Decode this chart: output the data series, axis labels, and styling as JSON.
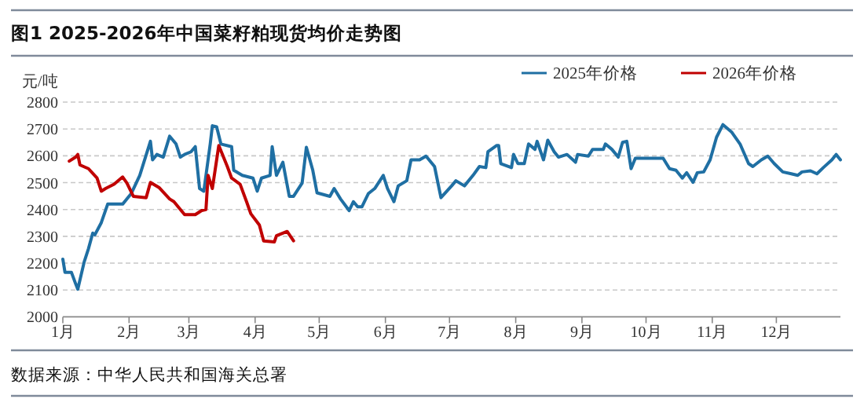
{
  "chart_data": {
    "type": "line",
    "title": "图1 2025-2026年中国菜籽粕现货均价走势图",
    "ylabel": "元/吨",
    "annotations": [
      "数据来源：中华人民共和国海关总署"
    ],
    "xlim": [
      "--01-01",
      "--12-31"
    ],
    "xticks": [
      {
        "value": "--01-01",
        "label": "1月"
      },
      {
        "value": "--02-01",
        "label": "2月"
      },
      {
        "value": "--03-01",
        "label": "3月"
      },
      {
        "value": "--04-01",
        "label": "4月"
      },
      {
        "value": "--05-01",
        "label": "5月"
      },
      {
        "value": "--06-01",
        "label": "6月"
      },
      {
        "value": "--07-01",
        "label": "7月"
      },
      {
        "value": "--08-01",
        "label": "8月"
      },
      {
        "value": "--09-01",
        "label": "9月"
      },
      {
        "value": "--10-01",
        "label": "10月"
      },
      {
        "value": "--11-01",
        "label": "11月"
      },
      {
        "value": "--12-01",
        "label": "12月"
      }
    ],
    "ylim": [
      2000,
      2800
    ],
    "yticks": [
      2000,
      2100,
      2200,
      2300,
      2400,
      2500,
      2600,
      2700,
      2800
    ],
    "grid": "y",
    "legend": "top right",
    "marker": "none",
    "line_style": "solid",
    "series": [
      {
        "name": "2025年价格",
        "color": "#1f6fa3",
        "x": [
          "--01-01",
          "--01-02",
          "--01-05",
          "--01-07",
          "--01-08",
          "--01-11",
          "--01-13",
          "--01-15",
          "--01-16",
          "--01-19",
          "--01-22",
          "--01-26",
          "--01-29",
          "--02-02",
          "--02-06",
          "--02-11",
          "--02-12",
          "--02-14",
          "--02-17",
          "--02-20",
          "--02-23",
          "--02-25",
          "--02-27",
          "--03-02",
          "--03-04",
          "--03-06",
          "--03-08",
          "--03-11",
          "--03-12",
          "--03-14",
          "--03-16",
          "--03-21",
          "--03-22",
          "--03-26",
          "--03-31",
          "--04-02",
          "--04-04",
          "--04-08",
          "--04-09",
          "--04-11",
          "--04-14",
          "--04-17",
          "--04-19",
          "--04-23",
          "--04-25",
          "--04-28",
          "--04-30",
          "--05-06",
          "--05-08",
          "--05-11",
          "--05-15",
          "--05-17",
          "--05-19",
          "--05-21",
          "--05-24",
          "--05-27",
          "--05-31",
          "--06-02",
          "--06-05",
          "--06-07",
          "--06-11",
          "--06-13",
          "--06-17",
          "--06-20",
          "--06-24",
          "--06-27",
          "--07-02",
          "--07-04",
          "--07-08",
          "--07-12",
          "--07-15",
          "--07-18",
          "--07-19",
          "--07-23",
          "--07-24",
          "--07-25",
          "--07-30",
          "--07-31",
          "--08-02",
          "--08-05",
          "--08-07",
          "--08-10",
          "--08-11",
          "--08-14",
          "--08-16",
          "--08-19",
          "--08-21",
          "--08-25",
          "--08-29",
          "--08-30",
          "--09-04",
          "--09-06",
          "--09-11",
          "--09-12",
          "--09-15",
          "--09-18",
          "--09-20",
          "--09-22",
          "--09-24",
          "--09-26",
          "--09-30",
          "--10-09",
          "--10-12",
          "--10-15",
          "--10-18",
          "--10-20",
          "--10-23",
          "--10-25",
          "--10-28",
          "--10-31",
          "--11-03",
          "--11-06",
          "--11-10",
          "--11-14",
          "--11-18",
          "--11-20",
          "--11-24",
          "--11-27",
          "--11-30",
          "--12-04",
          "--12-08",
          "--12-11",
          "--12-13",
          "--12-17",
          "--12-20",
          "--12-23",
          "--12-27",
          "--12-29",
          "--12-31"
        ],
        "values": [
          2215,
          2166,
          2166,
          2123,
          2103,
          2205,
          2254,
          2312,
          2306,
          2351,
          2420,
          2420,
          2420,
          2459,
          2527,
          2654,
          2585,
          2605,
          2595,
          2673,
          2644,
          2595,
          2605,
          2615,
          2634,
          2478,
          2468,
          2644,
          2712,
          2708,
          2644,
          2634,
          2546,
          2527,
          2517,
          2468,
          2517,
          2527,
          2634,
          2527,
          2576,
          2449,
          2449,
          2498,
          2632,
          2546,
          2462,
          2449,
          2478,
          2439,
          2396,
          2429,
          2410,
          2410,
          2459,
          2478,
          2527,
          2478,
          2429,
          2488,
          2507,
          2585,
          2585,
          2599,
          2560,
          2444,
          2488,
          2507,
          2488,
          2527,
          2560,
          2556,
          2615,
          2638,
          2638,
          2571,
          2556,
          2605,
          2571,
          2571,
          2644,
          2624,
          2654,
          2585,
          2658,
          2615,
          2595,
          2605,
          2576,
          2605,
          2599,
          2624,
          2624,
          2644,
          2624,
          2595,
          2650,
          2654,
          2552,
          2591,
          2591,
          2591,
          2552,
          2546,
          2517,
          2537,
          2501,
          2537,
          2540,
          2585,
          2669,
          2716,
          2689,
          2644,
          2571,
          2560,
          2585,
          2599,
          2571,
          2540,
          2533,
          2527,
          2540,
          2544,
          2533,
          2556,
          2585,
          2605,
          2585
        ]
      },
      {
        "name": "2026年价格",
        "color": "#c00000",
        "x": [
          "--01-04",
          "--01-07",
          "--01-08",
          "--01-09",
          "--01-13",
          "--01-17",
          "--01-19",
          "--01-21",
          "--01-25",
          "--01-29",
          "--01-31",
          "--02-03",
          "--02-09",
          "--02-11",
          "--02-15",
          "--02-20",
          "--02-22",
          "--02-27",
          "--03-04",
          "--03-07",
          "--03-09",
          "--03-10",
          "--03-12",
          "--03-15",
          "--03-19",
          "--03-21",
          "--03-25",
          "--03-28",
          "--03-30",
          "--04-03",
          "--04-05",
          "--04-10",
          "--04-11",
          "--04-16",
          "--04-19"
        ],
        "values": [
          2580,
          2595,
          2605,
          2566,
          2552,
          2517,
          2468,
          2478,
          2494,
          2521,
          2498,
          2449,
          2444,
          2501,
          2482,
          2439,
          2429,
          2381,
          2381,
          2396,
          2400,
          2527,
          2478,
          2638,
          2560,
          2517,
          2494,
          2429,
          2384,
          2342,
          2283,
          2279,
          2302,
          2318,
          2283
        ]
      }
    ]
  }
}
